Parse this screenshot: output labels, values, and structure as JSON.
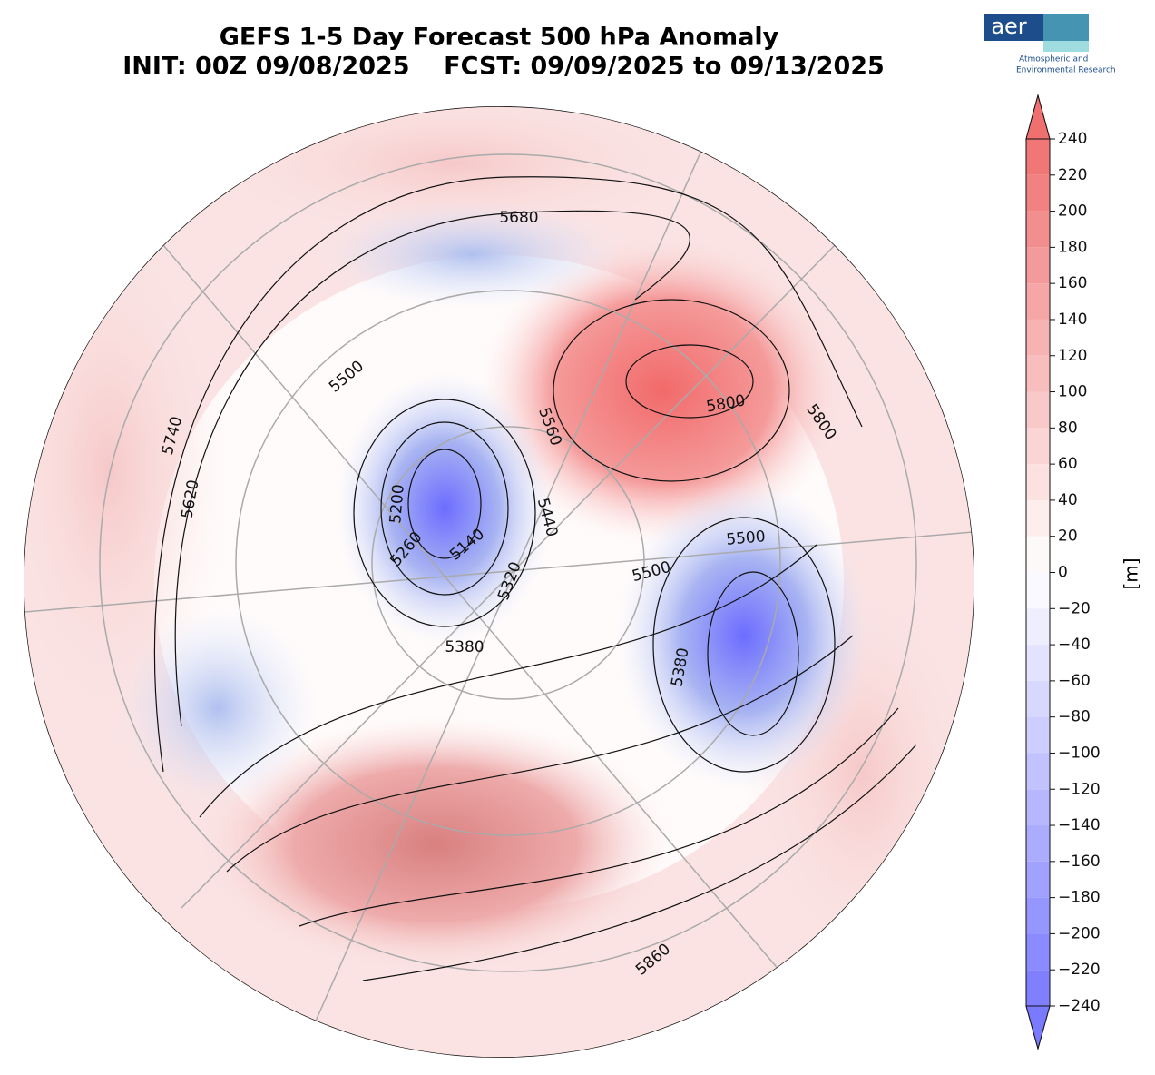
{
  "title": "GEFS 1-5 Day Forecast 500 hPa Anomaly",
  "subtitle": "INIT: 00Z 09/08/2025    FCST: 09/09/2025 to 09/13/2025",
  "logo": {
    "name": "aer",
    "line1": "Atmospheric and",
    "line2": "Environmental Research"
  },
  "colorbar": {
    "label": "[m]",
    "lim": [
      -240,
      240
    ],
    "ticks": [
      240,
      220,
      200,
      180,
      160,
      140,
      120,
      100,
      80,
      60,
      40,
      20,
      0,
      {
        "value": -20,
        "label": "−20"
      },
      {
        "value": -40,
        "label": "−40"
      },
      {
        "value": -60,
        "label": "−60"
      },
      {
        "value": -80,
        "label": "−80"
      },
      {
        "value": -100,
        "label": "−100"
      },
      {
        "value": -120,
        "label": "−120"
      },
      {
        "value": -140,
        "label": "−140"
      },
      {
        "value": -160,
        "label": "−160"
      },
      {
        "value": -180,
        "label": "−180"
      },
      {
        "value": -200,
        "label": "−200"
      },
      {
        "value": -220,
        "label": "−220"
      },
      {
        "value": -240,
        "label": "−240"
      }
    ],
    "positive_color": "#f07070",
    "negative_color": "#7a7aff"
  },
  "contour_labels": [
    5680,
    5500,
    5740,
    5620,
    5200,
    5260,
    5140,
    5320,
    5560,
    5440,
    5800,
    5800,
    5500,
    5500,
    5380,
    5380,
    5860
  ]
}
